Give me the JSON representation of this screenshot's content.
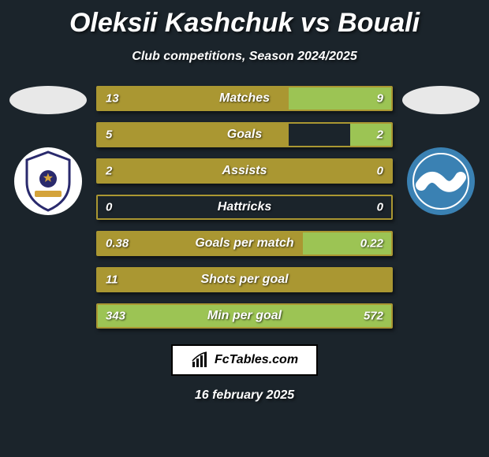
{
  "title": "Oleksii Kashchuk vs Bouali",
  "subtitle": "Club competitions, Season 2024/2025",
  "date": "16 february 2025",
  "logo_text": "FcTables.com",
  "colors": {
    "left": "#aa9732",
    "right": "#9cc454",
    "background": "#1b242b",
    "crest_left_bg": "#ffffff",
    "crest_left_inner": "#2a2a6d",
    "crest_right_bg": "#3a81b3",
    "crest_right_inner": "#ffffff"
  },
  "typography": {
    "title_fontsize": 34,
    "subtitle_fontsize": 16,
    "bar_label_fontsize": 16,
    "bar_value_fontsize": 15
  },
  "bars": [
    {
      "label": "Matches",
      "left": "13",
      "right": "9",
      "left_pct": 100,
      "right_pct": 35
    },
    {
      "label": "Goals",
      "left": "5",
      "right": "2",
      "left_pct": 65,
      "right_pct": 14
    },
    {
      "label": "Assists",
      "left": "2",
      "right": "0",
      "left_pct": 100,
      "right_pct": 0
    },
    {
      "label": "Hattricks",
      "left": "0",
      "right": "0",
      "left_pct": 0,
      "right_pct": 0
    },
    {
      "label": "Goals per match",
      "left": "0.38",
      "right": "0.22",
      "left_pct": 100,
      "right_pct": 30
    },
    {
      "label": "Shots per goal",
      "left": "11",
      "right": "",
      "left_pct": 100,
      "right_pct": 0
    },
    {
      "label": "Min per goal",
      "left": "343",
      "right": "572",
      "left_pct": 60,
      "right_pct": 100
    }
  ]
}
